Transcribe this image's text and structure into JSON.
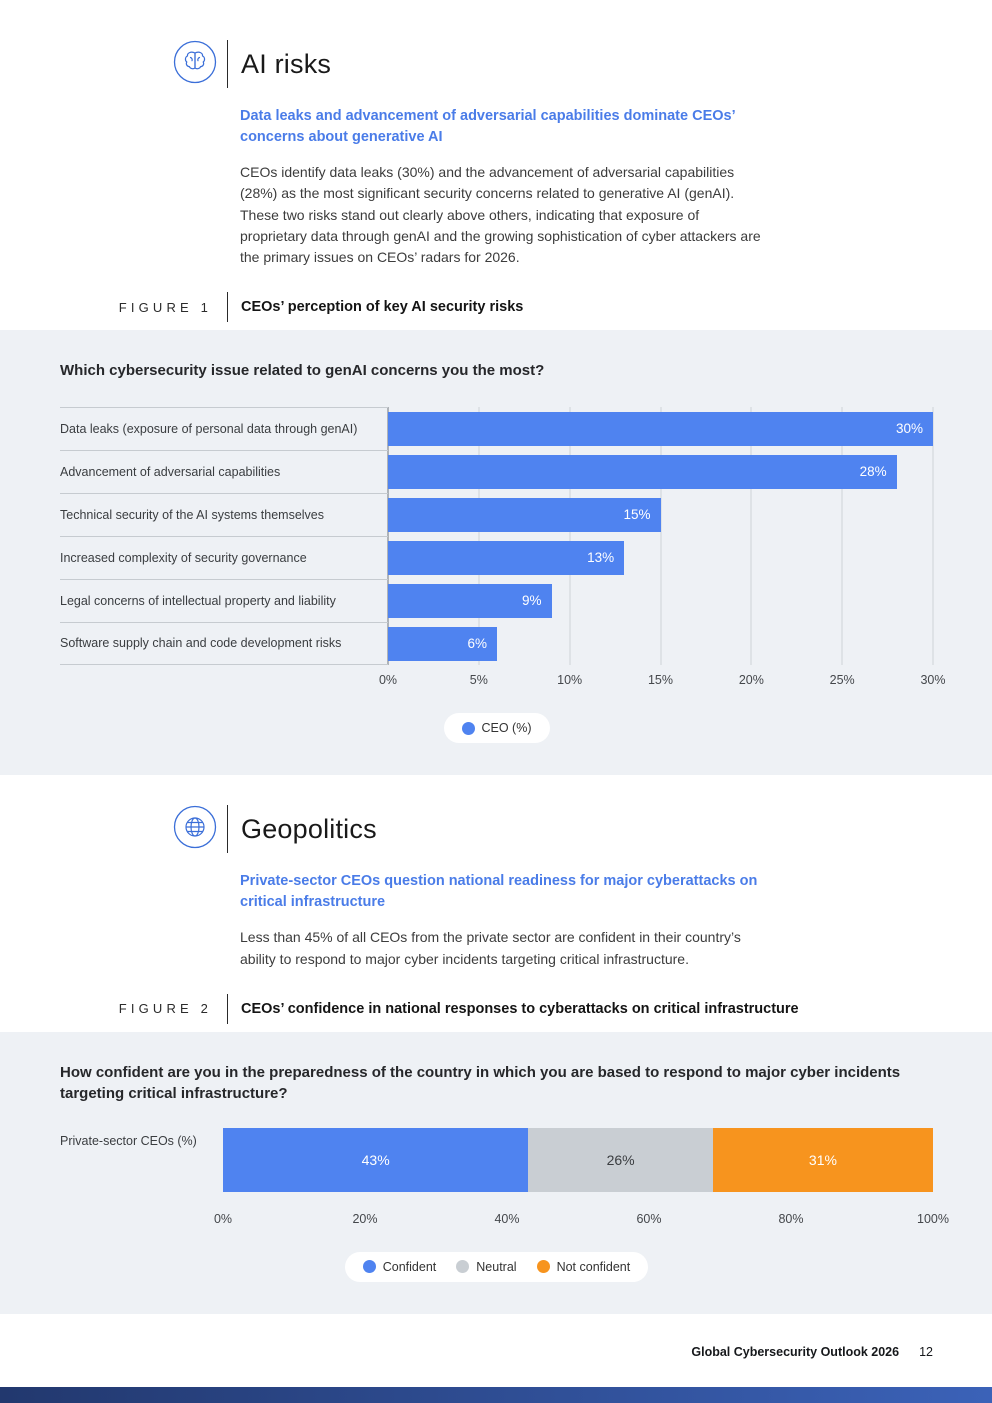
{
  "colors": {
    "accent_blue": "#4a7ce8",
    "bar_blue": "#4f83f0",
    "neutral_gray": "#c9ced3",
    "orange": "#f7941e",
    "section_bg": "#eef1f5",
    "footer_bar_left": "#22386e",
    "footer_bar_right": "#3b62b8"
  },
  "section_ai": {
    "icon": "brain-icon",
    "title": "AI risks",
    "subtitle": "Data leaks and advancement of adversarial capabilities dominate CEOs’ concerns about generative AI",
    "body": "CEOs identify data leaks (30%) and the advancement of adversarial capabilities (28%) as the most significant security concerns related to generative AI (genAI). These two risks stand out clearly above others, indicating that exposure of proprietary data through genAI and the growing sophistication of cyber attackers are the primary issues on CEOs’ radars for 2026.",
    "figure_label": "FIGURE 1",
    "figure_title": "CEOs’ perception of key AI security risks"
  },
  "section_geo": {
    "icon": "globe-icon",
    "title": "Geopolitics",
    "subtitle": "Private-sector CEOs question national readiness for major cyberattacks on critical infrastructure",
    "body": "Less than 45% of all CEOs from the private sector are confident in their country’s ability to respond to major cyber incidents targeting critical infrastructure.",
    "figure_label": "FIGURE 2",
    "figure_title": "CEOs’ confidence in national responses to cyberattacks on critical infrastructure"
  },
  "chart_data": [
    {
      "type": "bar",
      "question": "Which cybersecurity issue related to genAI concerns you the most?",
      "categories": [
        "Data leaks (exposure of personal data through genAI)",
        "Advancement of adversarial capabilities",
        "Technical security of the AI systems themselves",
        "Increased complexity of security governance",
        "Legal concerns of intellectual property and liability",
        "Software supply chain and code development risks"
      ],
      "values": [
        30,
        28,
        15,
        13,
        9,
        6
      ],
      "value_labels": [
        "30%",
        "28%",
        "15%",
        "13%",
        "9%",
        "6%"
      ],
      "xlim": [
        0,
        30
      ],
      "x_ticks": [
        "0%",
        "5%",
        "10%",
        "15%",
        "20%",
        "25%",
        "30%"
      ],
      "grid": true,
      "legend_position": "bottom-center",
      "legend": [
        {
          "label": "CEO (%)",
          "color": "#4f83f0"
        }
      ]
    },
    {
      "type": "stacked-bar",
      "question": "How confident are you in the preparedness of the country in which you are based to respond to major cyber incidents targeting critical infrastructure?",
      "row_label": "Private-sector CEOs (%)",
      "xlim": [
        0,
        100
      ],
      "x_ticks": [
        "0%",
        "20%",
        "40%",
        "60%",
        "80%",
        "100%"
      ],
      "legend_position": "bottom-center",
      "segments": [
        {
          "label": "Confident",
          "value": 43,
          "display": "43%",
          "color": "#4f83f0",
          "text_color": "#ffffff"
        },
        {
          "label": "Neutral",
          "value": 26,
          "display": "26%",
          "color": "#c9ced3",
          "text_color": "#3a3d40"
        },
        {
          "label": "Not confident",
          "value": 31,
          "display": "31%",
          "color": "#f7941e",
          "text_color": "#ffffff"
        }
      ],
      "legend": [
        {
          "label": "Confident",
          "color": "#4f83f0"
        },
        {
          "label": "Neutral",
          "color": "#c9ced3"
        },
        {
          "label": "Not confident",
          "color": "#f7941e"
        }
      ]
    }
  ],
  "footer": {
    "report_title": "Global Cybersecurity Outlook 2026",
    "page_number": "12"
  }
}
